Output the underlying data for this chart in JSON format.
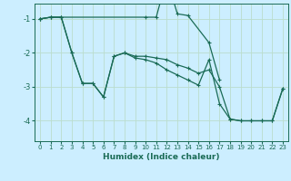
{
  "xlabel": "Humidex (Indice chaleur)",
  "bg_color": "#cceeff",
  "grid_color": "#bbddcc",
  "line_color": "#1a6b55",
  "xlim": [
    -0.5,
    23.5
  ],
  "ylim": [
    -4.6,
    -0.55
  ],
  "yticks": [
    -4,
    -3,
    -2,
    -1
  ],
  "xticks": [
    0,
    1,
    2,
    3,
    4,
    5,
    6,
    7,
    8,
    9,
    10,
    11,
    12,
    13,
    14,
    15,
    16,
    17,
    18,
    19,
    20,
    21,
    22,
    23
  ],
  "line1_x": [
    0,
    1,
    2,
    10,
    11,
    12,
    13,
    14,
    16,
    17
  ],
  "line1_y": [
    -1.0,
    -0.95,
    -0.95,
    -0.95,
    -0.95,
    0.2,
    -0.85,
    -0.9,
    -1.7,
    -2.8
  ],
  "line2_x": [
    0,
    1,
    2,
    3,
    4,
    5,
    6,
    7,
    8,
    9,
    10,
    11,
    12,
    13,
    14,
    15,
    16,
    17,
    18,
    19,
    20,
    21,
    22,
    23
  ],
  "line2_y": [
    -1.0,
    -0.95,
    -0.95,
    -2.0,
    -2.9,
    -2.9,
    -3.3,
    -2.1,
    -2.0,
    -2.1,
    -2.1,
    -2.15,
    -2.2,
    -2.35,
    -2.45,
    -2.6,
    -2.5,
    -3.0,
    -3.95,
    -4.0,
    -4.0,
    -4.0,
    -4.0,
    -3.05
  ],
  "line3_x": [
    0,
    1,
    2,
    3,
    4,
    5,
    6,
    7,
    8,
    9,
    10,
    11,
    12,
    13,
    14,
    15,
    16,
    17,
    18,
    19,
    20,
    21,
    22,
    23
  ],
  "line3_y": [
    -1.0,
    -0.95,
    -0.95,
    -2.0,
    -2.9,
    -2.9,
    -3.3,
    -2.1,
    -2.0,
    -2.15,
    -2.2,
    -2.3,
    -2.5,
    -2.65,
    -2.8,
    -2.95,
    -2.2,
    -3.5,
    -3.95,
    -4.0,
    -4.0,
    -4.0,
    -4.0,
    -3.05
  ],
  "marker_size": 3.5,
  "line_width": 0.9
}
